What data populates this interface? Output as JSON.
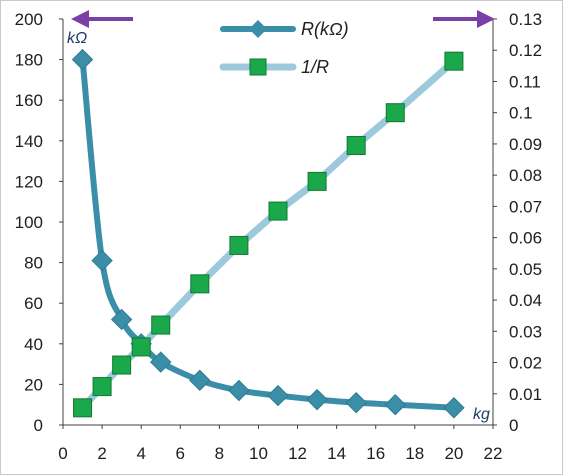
{
  "chart_data": {
    "type": "line",
    "x_ticks": [
      0,
      2,
      4,
      6,
      8,
      10,
      12,
      14,
      16,
      18,
      20,
      22
    ],
    "xlim": [
      0,
      22
    ],
    "y_left": {
      "lim": [
        0,
        200
      ],
      "ticks": [
        0,
        20,
        40,
        60,
        80,
        100,
        120,
        140,
        160,
        180,
        200
      ],
      "unit_label": "kΩ"
    },
    "y_right": {
      "lim": [
        0,
        0.13
      ],
      "ticks": [
        "0",
        "0.01",
        "0.02",
        "0.03",
        "0.04",
        "0.05",
        "0.06",
        "0.07",
        "0.08",
        "0.09",
        "0.1",
        "0.11",
        "0.12",
        "0.13"
      ]
    },
    "x_unit_label": "kg",
    "grid": false,
    "legend": {
      "position": "top-center",
      "items": [
        {
          "label": "R(kΩ)",
          "marker": "diamond",
          "color": "#3a8ea8"
        },
        {
          "label": "1/R",
          "marker": "square",
          "color": "#1aa84a"
        }
      ]
    },
    "series": [
      {
        "name": "R(kΩ)",
        "axis": "left",
        "color": "#3a8ea8",
        "marker": "diamond",
        "points": [
          [
            1,
            180
          ],
          [
            2,
            81
          ],
          [
            3,
            52
          ],
          [
            4,
            40
          ],
          [
            5,
            31
          ],
          [
            7,
            22
          ],
          [
            9,
            17
          ],
          [
            11,
            14.5
          ],
          [
            13,
            12.5
          ],
          [
            15,
            11
          ],
          [
            17,
            10
          ],
          [
            20,
            8.5
          ]
        ]
      },
      {
        "name": "1/R",
        "axis": "right",
        "color": "#1aa84a",
        "line_color": "#9cc9dc",
        "marker": "square",
        "points": [
          [
            1,
            0.0055
          ],
          [
            2,
            0.0123
          ],
          [
            3,
            0.0192
          ],
          [
            4,
            0.025
          ],
          [
            5,
            0.032
          ],
          [
            7,
            0.0452
          ],
          [
            9,
            0.0575
          ],
          [
            11,
            0.0685
          ],
          [
            13,
            0.078
          ],
          [
            15,
            0.0895
          ],
          [
            17,
            0.1
          ],
          [
            20,
            0.1165
          ]
        ]
      }
    ],
    "arrows": [
      {
        "direction": "left",
        "meaning": "left-axis",
        "color": "#7b3fa8"
      },
      {
        "direction": "right",
        "meaning": "right-axis",
        "color": "#7b3fa8"
      }
    ]
  }
}
